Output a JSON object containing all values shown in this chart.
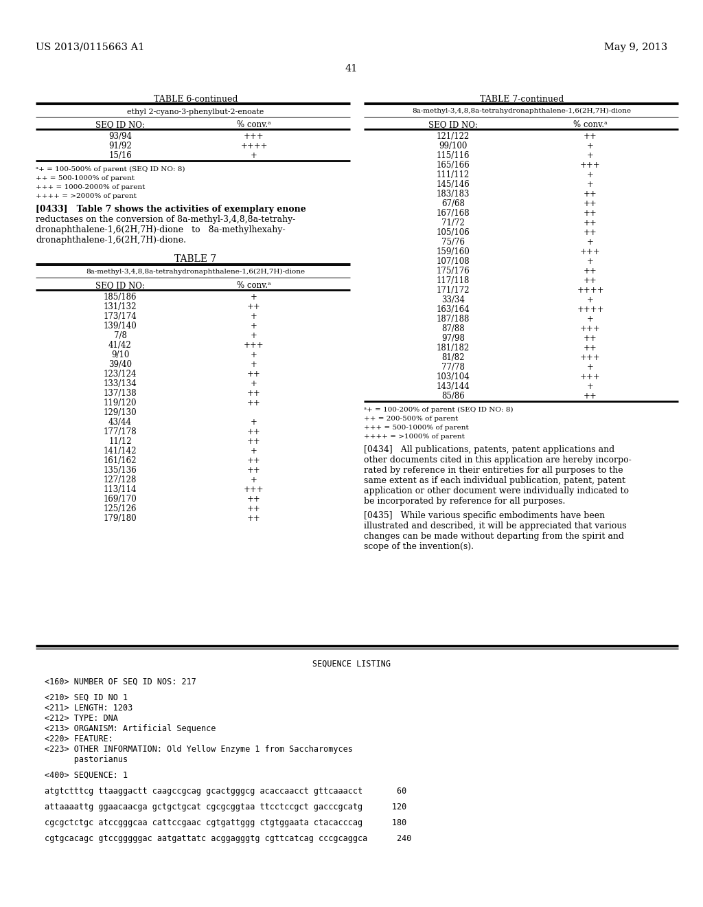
{
  "header_left": "US 2013/0115663 A1",
  "header_right": "May 9, 2013",
  "page_number": "41",
  "table6_title": "TABLE 6-continued",
  "table6_subtitle": "ethyl 2-cyano-3-phenylbut-2-enoate",
  "table6_col1": "SEQ ID NO:",
  "table6_col2": "% conv.ᵃ",
  "table6_data": [
    [
      "93/94",
      "+++"
    ],
    [
      "91/92",
      "++++"
    ],
    [
      "15/16",
      "+"
    ]
  ],
  "table6_footnotes": [
    "ᵃ+ = 100-500% of parent (SEQ ID NO: 8)",
    "++ = 500-1000% of parent",
    "+++ = 1000-2000% of parent",
    "++++ = >2000% of parent"
  ],
  "table7_title": "TABLE 7",
  "table7_subtitle": "8a-methyl-3,4,8,8a-tetrahydronaphthalene-1,6(2H,7H)-dione",
  "table7_col1": "SEQ ID NO:",
  "table7_col2": "% conv.ᵃ",
  "table7_data": [
    [
      "185/186",
      "+"
    ],
    [
      "131/132",
      "++"
    ],
    [
      "173/174",
      "+"
    ],
    [
      "139/140",
      "+"
    ],
    [
      "7/8",
      "+"
    ],
    [
      "41/42",
      "+++"
    ],
    [
      "9/10",
      "+"
    ],
    [
      "39/40",
      "+"
    ],
    [
      "123/124",
      "++"
    ],
    [
      "133/134",
      "+"
    ],
    [
      "137/138",
      "++"
    ],
    [
      "119/120",
      "++"
    ],
    [
      "129/130",
      ""
    ],
    [
      "43/44",
      "+"
    ],
    [
      "177/178",
      "++"
    ],
    [
      "11/12",
      "++"
    ],
    [
      "141/142",
      "+"
    ],
    [
      "161/162",
      "++"
    ],
    [
      "135/136",
      "++"
    ],
    [
      "127/128",
      "+"
    ],
    [
      "113/114",
      "+++"
    ],
    [
      "169/170",
      "++"
    ],
    [
      "125/126",
      "++"
    ],
    [
      "179/180",
      "++"
    ]
  ],
  "table7cont_title": "TABLE 7-continued",
  "table7cont_subtitle": "8a-methyl-3,4,8,8a-tetrahydronaphthalene-1,6(2H,7H)-dione",
  "table7cont_col1": "SEQ ID NO:",
  "table7cont_col2": "% conv.ᵃ",
  "table7cont_data": [
    [
      "121/122",
      "++"
    ],
    [
      "99/100",
      "+"
    ],
    [
      "115/116",
      "+"
    ],
    [
      "165/166",
      "+++"
    ],
    [
      "111/112",
      "+"
    ],
    [
      "145/146",
      "+"
    ],
    [
      "183/183",
      "++"
    ],
    [
      "67/68",
      "++"
    ],
    [
      "167/168",
      "++"
    ],
    [
      "71/72",
      "++"
    ],
    [
      "105/106",
      "++"
    ],
    [
      "75/76",
      "+"
    ],
    [
      "159/160",
      "+++"
    ],
    [
      "107/108",
      "+"
    ],
    [
      "175/176",
      "++"
    ],
    [
      "117/118",
      "++"
    ],
    [
      "171/172",
      "++++"
    ],
    [
      "33/34",
      "+"
    ],
    [
      "163/164",
      "++++"
    ],
    [
      "187/188",
      "+"
    ],
    [
      "87/88",
      "+++"
    ],
    [
      "97/98",
      "++"
    ],
    [
      "181/182",
      "++"
    ],
    [
      "81/82",
      "+++"
    ],
    [
      "77/78",
      "+"
    ],
    [
      "103/104",
      "+++"
    ],
    [
      "143/144",
      "+"
    ],
    [
      "85/86",
      "++"
    ]
  ],
  "table7_footnotes": [
    "ᵃ+ = 100-200% of parent (SEQ ID NO: 8)",
    "++ = 200-500% of parent",
    "+++ = 500-1000% of parent",
    "++++ = >1000% of parent"
  ],
  "lines_0433": [
    "[0433]   Table 7 shows the activities of exemplary enone",
    "reductases on the conversion of 8a-methyl-3,4,8,8a-tetrahy-",
    "dronaphthalene-1,6(2H,7H)-dione   to   8a-methylhexahy-",
    "dronaphthalene-1,6(2H,7H)-dione."
  ],
  "lines_0434": [
    "[0434]   All publications, patents, patent applications and",
    "other documents cited in this application are hereby incorpo-",
    "rated by reference in their entireties for all purposes to the",
    "same extent as if each individual publication, patent, patent",
    "application or other document were individually indicated to",
    "be incorporated by reference for all purposes."
  ],
  "lines_0435": [
    "[0435]   While various specific embodiments have been",
    "illustrated and described, it will be appreciated that various",
    "changes can be made without departing from the spirit and",
    "scope of the invention(s)."
  ],
  "seq_listing_title": "SEQUENCE LISTING",
  "seq_lines": [
    "<160> NUMBER OF SEQ ID NOS: 217",
    "",
    "<210> SEQ ID NO 1",
    "<211> LENGTH: 1203",
    "<212> TYPE: DNA",
    "<213> ORGANISM: Artificial Sequence",
    "<220> FEATURE:",
    "<223> OTHER INFORMATION: Old Yellow Enzyme 1 from Saccharomyces",
    "      pastorianus",
    "",
    "<400> SEQUENCE: 1",
    "",
    "atgtctttcg ttaaggactt caagccgcag gcactgggcg acaccaacct gttcaaacct       60",
    "",
    "attaaaattg ggaacaacga gctgctgcat cgcgcggtaa ttcctccgct gacccgcatg      120",
    "",
    "cgcgctctgc atccgggcaa cattccgaac cgtgattggg ctgtggaata ctacacccag      180",
    "",
    "cgtgcacagc gtccgggggac aatgattatc acggagggtg cgttcatcag cccgcaggca      240"
  ],
  "bg_color": "#ffffff"
}
